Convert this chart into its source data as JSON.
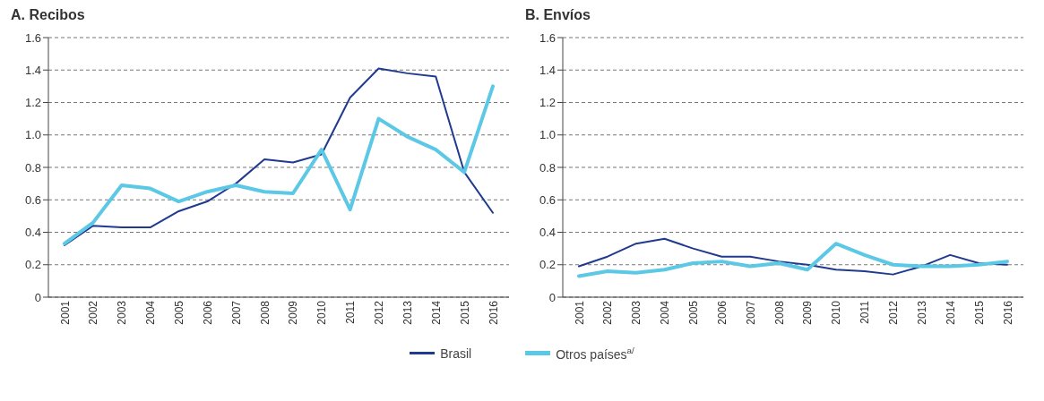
{
  "chart_data": [
    {
      "type": "line",
      "title": "A. Recibos",
      "categories": [
        "2001",
        "2002",
        "2003",
        "2004",
        "2005",
        "2006",
        "2007",
        "2008",
        "2009",
        "2010",
        "2011",
        "2012",
        "2013",
        "2014",
        "2015",
        "2016"
      ],
      "ylim": [
        0,
        1.6
      ],
      "yticks": [
        0,
        0.2,
        0.4,
        0.6,
        0.8,
        {
          "value": 1,
          "label": "1.0"
        },
        1.2,
        1.4,
        1.6
      ],
      "grid": "y",
      "legend": "bottom",
      "marker": "none",
      "series": [
        {
          "name": "Brasil",
          "color": "#1f3a8f",
          "values": [
            0.32,
            0.44,
            0.43,
            0.43,
            0.53,
            0.59,
            0.7,
            0.85,
            0.83,
            0.88,
            1.23,
            1.41,
            1.38,
            1.36,
            0.77,
            0.52
          ]
        },
        {
          "name": "Otros países$^{a/}$",
          "color": "#5bc8e6",
          "values": [
            0.33,
            0.46,
            0.69,
            0.67,
            0.59,
            0.65,
            0.69,
            0.65,
            0.64,
            0.91,
            0.54,
            1.1,
            0.99,
            0.91,
            0.77,
            1.3
          ]
        }
      ]
    },
    {
      "type": "line",
      "title": "B. Envíos",
      "categories": [
        "2001",
        "2002",
        "2003",
        "2004",
        "2005",
        "2006",
        "2007",
        "2008",
        "2009",
        "2010",
        "2011",
        "2012",
        "2013",
        "2014",
        "2015",
        "2016"
      ],
      "ylim": [
        0,
        1.6
      ],
      "yticks": [
        0,
        0.2,
        0.4,
        0.6,
        0.8,
        {
          "value": 1,
          "label": "1.0"
        },
        1.2,
        1.4,
        1.6
      ],
      "grid": "y",
      "marker": "none",
      "series": [
        {
          "name": "Brasil",
          "color": "#1f3a8f",
          "values": [
            0.19,
            0.25,
            0.33,
            0.36,
            0.3,
            0.25,
            0.25,
            0.22,
            0.2,
            0.17,
            0.16,
            0.14,
            0.19,
            0.26,
            0.21,
            0.2
          ]
        },
        {
          "name": "Otros países$^{a/}$",
          "color": "#5bc8e6",
          "values": [
            0.13,
            0.16,
            0.15,
            0.17,
            0.21,
            0.22,
            0.19,
            0.21,
            0.17,
            0.33,
            0.26,
            0.2,
            0.19,
            0.19,
            0.2,
            0.22
          ]
        }
      ]
    }
  ]
}
